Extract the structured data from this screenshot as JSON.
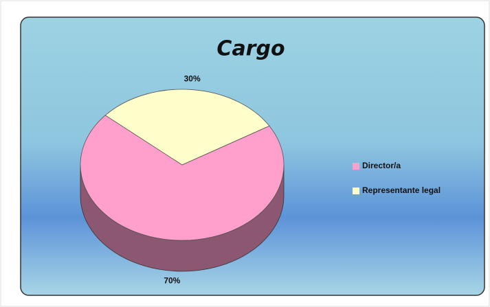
{
  "chart_data": {
    "type": "pie",
    "title": "Cargo",
    "categories": [
      "Director/a",
      "Representante legal"
    ],
    "values": [
      70,
      30
    ],
    "value_labels": [
      "70%",
      "30%"
    ],
    "colors": [
      "#ff9fcc",
      "#ffffcc"
    ],
    "legend": "right"
  }
}
